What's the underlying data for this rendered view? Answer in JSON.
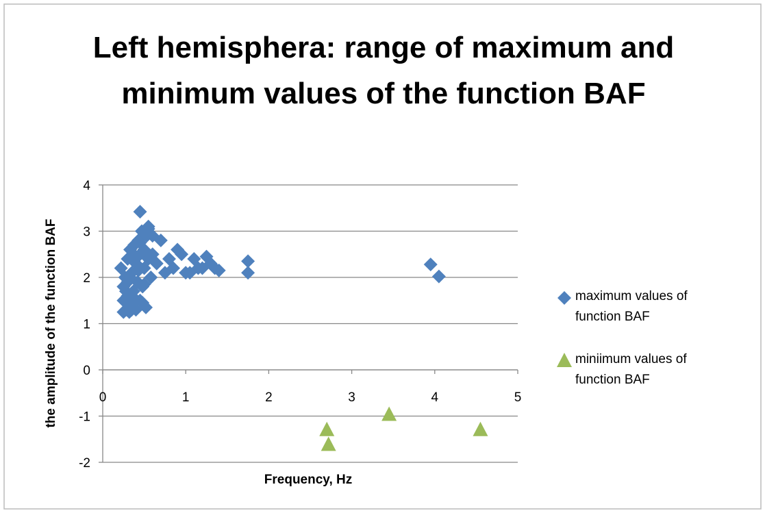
{
  "chart_data": {
    "type": "scatter",
    "title": "Left hemisphera: range of maximum and minimum values of the function BAF",
    "x_label": "Frequency, Hz",
    "y_label": "the amplitude of the function BAF",
    "xlim": [
      0,
      5
    ],
    "xticks": [
      0,
      1,
      2,
      3,
      4,
      5
    ],
    "ylim": [
      -2,
      4
    ],
    "yticks": [
      -2,
      -1,
      0,
      1,
      2,
      3,
      4
    ],
    "grid": true,
    "legend": "right",
    "series": [
      {
        "name": "maximum values of function BAF",
        "color": "#4f81bd",
        "marker": "diamond",
        "x": [
          0.22,
          0.25,
          0.25,
          0.27,
          0.28,
          0.3,
          0.3,
          0.32,
          0.33,
          0.35,
          0.35,
          0.37,
          0.38,
          0.4,
          0.4,
          0.42,
          0.43,
          0.45,
          0.45,
          0.47,
          0.48,
          0.5,
          0.5,
          0.52,
          0.53,
          0.55,
          0.28,
          0.33,
          0.38,
          0.43,
          0.48,
          0.3,
          0.4,
          0.5,
          0.35,
          0.45,
          0.25,
          0.55,
          0.6,
          0.58,
          0.45,
          0.55,
          0.6,
          0.7,
          0.8,
          0.9,
          0.95,
          1.0,
          1.1,
          1.15,
          1.25,
          1.3,
          1.35,
          1.4,
          1.75,
          1.75,
          3.95,
          4.05,
          0.75,
          0.85,
          0.65,
          1.2,
          1.05
        ],
        "values": [
          2.2,
          1.5,
          1.8,
          2.0,
          1.3,
          1.6,
          2.4,
          1.25,
          2.6,
          1.4,
          2.1,
          1.7,
          2.7,
          1.3,
          2.3,
          1.9,
          2.8,
          1.5,
          2.5,
          3.0,
          1.8,
          2.6,
          2.2,
          1.35,
          2.9,
          2.4,
          1.7,
          2.0,
          1.55,
          2.15,
          1.45,
          1.9,
          2.45,
          1.85,
          1.3,
          2.75,
          1.25,
          3.05,
          2.5,
          2.0,
          3.42,
          3.1,
          2.9,
          2.8,
          2.4,
          2.6,
          2.5,
          2.1,
          2.4,
          2.2,
          2.45,
          2.3,
          2.2,
          2.15,
          2.35,
          2.1,
          2.28,
          2.02,
          2.1,
          2.2,
          2.3,
          2.2,
          2.1
        ]
      },
      {
        "name": "miniimum values of function BAF",
        "color": "#9bbb59",
        "marker": "triangle",
        "x": [
          2.7,
          2.72,
          3.45,
          4.55
        ],
        "values": [
          -1.3,
          -1.62,
          -0.97,
          -1.3
        ]
      }
    ]
  }
}
